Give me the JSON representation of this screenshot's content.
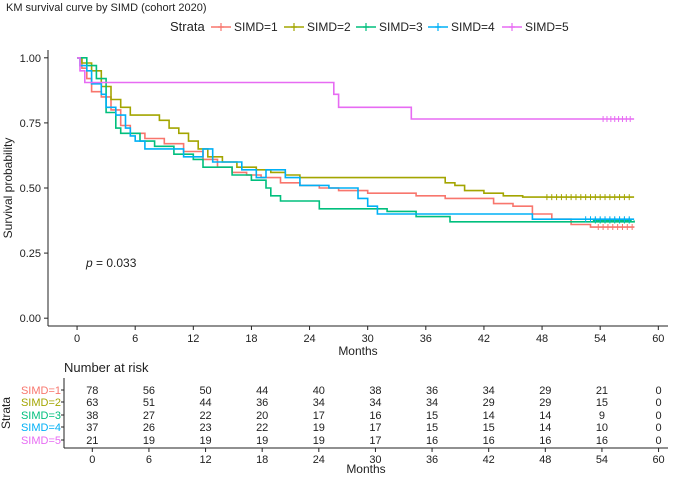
{
  "chart_data": [
    {
      "type": "line",
      "title": "KM survival curve by SIMD (cohort 2020)",
      "xlabel": "Months",
      "ylabel": "Survival probability",
      "xlim": [
        -3,
        61
      ],
      "ylim": [
        -0.03,
        1.03
      ],
      "x_ticks": [
        "0",
        "6",
        "12",
        "18",
        "24",
        "30",
        "36",
        "42",
        "48",
        "54",
        "60"
      ],
      "y_ticks": [
        "0.00",
        "0.25",
        "0.50",
        "0.75",
        "1.00"
      ],
      "legend_title": "Strata",
      "legend_position": "top",
      "annotation": "p = 0.033",
      "annotation_p": "p",
      "annotation_rest": " = 0.033",
      "grid": false,
      "series": [
        {
          "name": "SIMD=1",
          "color": "#F8766D",
          "steps": [
            [
              0,
              1.0
            ],
            [
              0.5,
              0.96
            ],
            [
              1.0,
              0.92
            ],
            [
              1.5,
              0.87
            ],
            [
              2.5,
              0.85
            ],
            [
              3.5,
              0.8
            ],
            [
              4.5,
              0.74
            ],
            [
              5.5,
              0.71
            ],
            [
              7,
              0.69
            ],
            [
              9,
              0.67
            ],
            [
              11,
              0.64
            ],
            [
              13,
              0.61
            ],
            [
              14.5,
              0.58
            ],
            [
              16,
              0.56
            ],
            [
              17.5,
              0.55
            ],
            [
              19,
              0.54
            ],
            [
              21,
              0.52
            ],
            [
              23,
              0.51
            ],
            [
              25,
              0.5
            ],
            [
              27,
              0.49
            ],
            [
              30,
              0.48
            ],
            [
              35,
              0.47
            ],
            [
              38,
              0.46
            ],
            [
              43,
              0.44
            ],
            [
              45,
              0.43
            ],
            [
              47,
              0.4
            ],
            [
              49,
              0.38
            ],
            [
              51,
              0.36
            ],
            [
              53,
              0.35
            ],
            [
              57.5,
              0.35
            ]
          ],
          "censor": [
            53.8,
            54.3,
            54.8,
            55.3,
            55.8,
            56.3,
            56.8,
            57.3
          ]
        },
        {
          "name": "SIMD=2",
          "color": "#A3A500",
          "steps": [
            [
              0,
              1.0
            ],
            [
              0.5,
              0.98
            ],
            [
              1.5,
              0.95
            ],
            [
              2.5,
              0.89
            ],
            [
              3.5,
              0.84
            ],
            [
              4.5,
              0.81
            ],
            [
              5.5,
              0.78
            ],
            [
              8.5,
              0.76
            ],
            [
              9.5,
              0.73
            ],
            [
              10.5,
              0.71
            ],
            [
              11.5,
              0.68
            ],
            [
              12.5,
              0.65
            ],
            [
              13.5,
              0.62
            ],
            [
              15,
              0.6
            ],
            [
              16.5,
              0.58
            ],
            [
              18.5,
              0.57
            ],
            [
              20,
              0.56
            ],
            [
              21.5,
              0.55
            ],
            [
              23,
              0.54
            ],
            [
              38,
              0.52
            ],
            [
              39,
              0.51
            ],
            [
              40,
              0.49
            ],
            [
              42,
              0.48
            ],
            [
              44,
              0.47
            ],
            [
              46,
              0.465
            ],
            [
              57.5,
              0.465
            ]
          ],
          "censor": [
            48.5,
            49,
            49.5,
            50,
            50.5,
            51,
            51.5,
            52,
            52.5,
            53,
            53.5,
            54,
            54.5,
            55,
            55.5,
            56,
            56.5,
            57
          ]
        },
        {
          "name": "SIMD=3",
          "color": "#00BF7D",
          "steps": [
            [
              0,
              1.0
            ],
            [
              1.0,
              0.97
            ],
            [
              2.0,
              0.92
            ],
            [
              3.0,
              0.79
            ],
            [
              4.0,
              0.73
            ],
            [
              4.5,
              0.71
            ],
            [
              6.5,
              0.68
            ],
            [
              8,
              0.66
            ],
            [
              10,
              0.63
            ],
            [
              12,
              0.61
            ],
            [
              13,
              0.58
            ],
            [
              16,
              0.55
            ],
            [
              18,
              0.53
            ],
            [
              19.5,
              0.5
            ],
            [
              20,
              0.47
            ],
            [
              21,
              0.45
            ],
            [
              25,
              0.42
            ],
            [
              29,
              0.42
            ],
            [
              32,
              0.41
            ],
            [
              35,
              0.39
            ],
            [
              38.5,
              0.37
            ],
            [
              49,
              0.37
            ],
            [
              57.5,
              0.375
            ]
          ],
          "censor": [
            53.5,
            54,
            54.5,
            55,
            55.5,
            56,
            56.5,
            57
          ]
        },
        {
          "name": "SIMD=4",
          "color": "#00B0F6",
          "steps": [
            [
              0,
              1.0
            ],
            [
              0.3,
              0.97
            ],
            [
              1,
              0.95
            ],
            [
              1.5,
              0.9
            ],
            [
              2.5,
              0.86
            ],
            [
              3,
              0.81
            ],
            [
              4,
              0.78
            ],
            [
              5,
              0.73
            ],
            [
              5.5,
              0.7
            ],
            [
              6,
              0.68
            ],
            [
              7,
              0.65
            ],
            [
              11,
              0.62
            ],
            [
              13,
              0.65
            ],
            [
              14,
              0.6
            ],
            [
              17,
              0.57
            ],
            [
              18.5,
              0.54
            ],
            [
              19.5,
              0.57
            ],
            [
              21.5,
              0.54
            ],
            [
              23,
              0.51
            ],
            [
              26,
              0.5
            ],
            [
              29,
              0.46
            ],
            [
              30,
              0.43
            ],
            [
              31,
              0.4
            ],
            [
              38,
              0.4
            ],
            [
              47,
              0.38
            ],
            [
              57.5,
              0.38
            ]
          ],
          "censor": [
            52.5,
            53,
            53.5,
            54,
            54.5,
            55,
            55.5,
            56,
            56.5,
            57
          ]
        },
        {
          "name": "SIMD=5",
          "color": "#E76BF3",
          "steps": [
            [
              0,
              1.0
            ],
            [
              0.3,
              0.95
            ],
            [
              0.8,
              0.905
            ],
            [
              26.5,
              0.86
            ],
            [
              27,
              0.81
            ],
            [
              34.5,
              0.765
            ],
            [
              57.5,
              0.765
            ]
          ],
          "censor": [
            54.3,
            54.7,
            55.1,
            55.5,
            55.9,
            56.3,
            56.7,
            57.1
          ]
        }
      ]
    },
    {
      "type": "table",
      "title": "Number at risk",
      "row_axis_label": "Strata",
      "xlabel": "Months",
      "x_ticks": [
        "0",
        "6",
        "12",
        "18",
        "24",
        "30",
        "36",
        "42",
        "48",
        "54",
        "60"
      ],
      "rows": [
        {
          "label": "SIMD=1",
          "color": "#F8766D",
          "values": [
            "78",
            "56",
            "50",
            "44",
            "40",
            "38",
            "36",
            "34",
            "29",
            "21",
            "0"
          ]
        },
        {
          "label": "SIMD=2",
          "color": "#A3A500",
          "values": [
            "63",
            "51",
            "44",
            "36",
            "34",
            "34",
            "34",
            "29",
            "29",
            "15",
            "0"
          ]
        },
        {
          "label": "SIMD=3",
          "color": "#00BF7D",
          "values": [
            "38",
            "27",
            "22",
            "20",
            "17",
            "16",
            "15",
            "14",
            "14",
            "9",
            "0"
          ]
        },
        {
          "label": "SIMD=4",
          "color": "#00B0F6",
          "values": [
            "37",
            "26",
            "23",
            "22",
            "19",
            "17",
            "15",
            "15",
            "14",
            "10",
            "0"
          ]
        },
        {
          "label": "SIMD=5",
          "color": "#E76BF3",
          "values": [
            "21",
            "19",
            "19",
            "19",
            "19",
            "17",
            "16",
            "16",
            "16",
            "16",
            "0"
          ]
        }
      ]
    }
  ]
}
